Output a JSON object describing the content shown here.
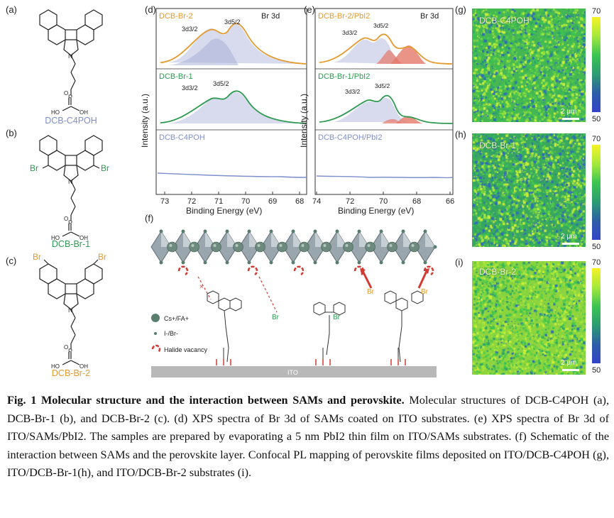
{
  "molecules": {
    "a": {
      "panel": "(a)",
      "name": "DCB-C4POH",
      "color": "#7f8fcc"
    },
    "b": {
      "panel": "(b)",
      "name": "DCB-Br-1",
      "color": "#2f9a52",
      "br": "Br"
    },
    "c": {
      "panel": "(c)",
      "name": "DCB-Br-2",
      "color": "#e39a2e",
      "br": "Br"
    },
    "atoms": {
      "n": "N",
      "p": "P",
      "o": "O",
      "ho": "HO",
      "oh": "OH"
    }
  },
  "xps_d": {
    "panel": "(d)",
    "element": "Br 3d",
    "ylabel": "Intensity (a.u.)",
    "xlabel": "Binding Energy (eV)",
    "xticks": [
      "73",
      "72",
      "71",
      "70",
      "69",
      "68"
    ],
    "traces": [
      {
        "name": "DCB-Br-2",
        "color": "#e39a2e",
        "peak1": "3d3/2",
        "peak2": "3d5/2"
      },
      {
        "name": "DCB-Br-1",
        "color": "#2f9a52",
        "peak1": "3d3/2",
        "peak2": "3d5/2"
      },
      {
        "name": "DCB-C4POH",
        "color": "#7f8fcc"
      }
    ]
  },
  "xps_e": {
    "panel": "(e)",
    "element": "Br 3d",
    "ylabel": "Intensity (a.u.)",
    "xlabel": "Binding Energy (eV)",
    "xticks": [
      "74",
      "72",
      "70",
      "68",
      "66"
    ],
    "traces": [
      {
        "name": "DCB-Br-2/PbI2",
        "color": "#e39a2e"
      },
      {
        "name": "DCB-Br-1/PbI2",
        "color": "#2f9a52"
      },
      {
        "name": "DCB-C4POH/PbI2",
        "color": "#7f8fcc"
      }
    ],
    "peak_labels": [
      "3d3/2",
      "3d5/2",
      "3d3/2",
      "3d5/2"
    ]
  },
  "schematic": {
    "panel": "(f)",
    "legend": [
      {
        "label": "Cs+/FA+"
      },
      {
        "label": "I-/Br-"
      },
      {
        "label": "Halide vacancy"
      }
    ],
    "substrate": "ITO",
    "br": "Br",
    "cross": "×"
  },
  "pl_maps": [
    {
      "panel": "(g)",
      "title": "DCB-C4POH",
      "scale": "2 μm",
      "cmax": "70",
      "cmin": "50"
    },
    {
      "panel": "(h)",
      "title": "DCB-Br-1",
      "scale": "2 μm",
      "cmax": "70",
      "cmin": "50"
    },
    {
      "panel": "(i)",
      "title": "DCB-Br-2",
      "scale": "2 μm",
      "cmax": "70",
      "cmin": "50"
    }
  ],
  "caption": {
    "bold": "Fig. 1 Molecular structure and the interaction between SAMs and perovskite.",
    "text": " Molecular structures of DCB-C4POH (a), DCB-Br-1 (b), and DCB-Br-2 (c). (d) XPS spectra of Br 3d of SAMs coated on ITO substrates. (e) XPS spectra of Br 3d of ITO/SAMs/PbI2. The samples are prepared by evaporating a 5 nm PbI2 thin film on ITO/SAMs substrates. (f) Schematic of the interaction between SAMs and the perovskite layer. Confocal PL mapping of perovskite films deposited on ITO/DCB-C4POH (g), ITO/DCB-Br-1(h), and ITO/DCB-Br-2 substrates (i)."
  }
}
